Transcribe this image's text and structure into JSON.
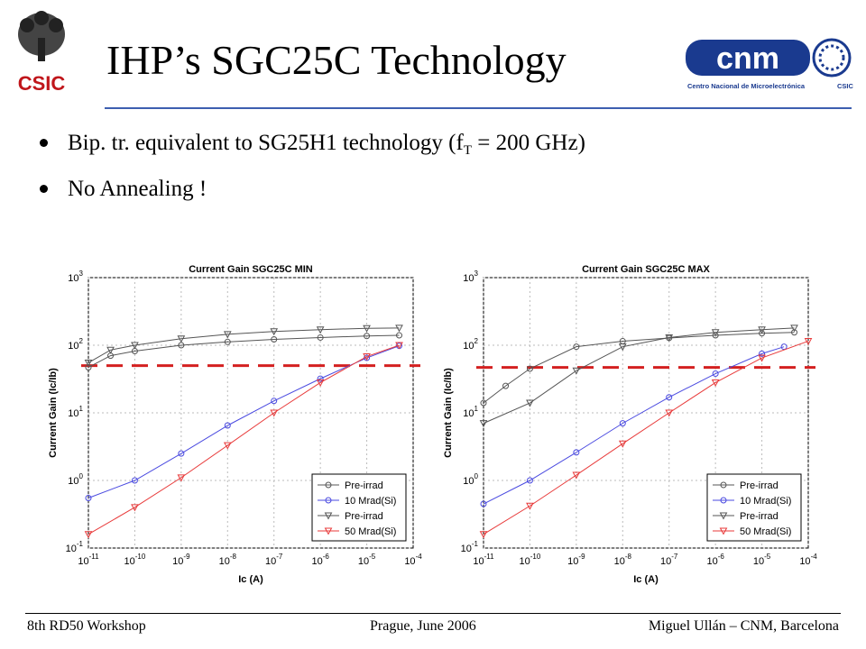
{
  "slide": {
    "title": "IHP’s SGC25C Technology",
    "bullets": [
      {
        "text": "Bip. tr. equivalent to SG25H1 technology (f",
        "sub": "T",
        "after": " = 200 GHz)"
      },
      {
        "text": "No Annealing !"
      }
    ],
    "logos": {
      "left_text": "CSIC",
      "right_name": "Centro Nacional de Microelectrónica",
      "right_sub": "CSIC"
    },
    "footer": {
      "left": "8th RD50 Workshop",
      "center": "Prague, June 2006",
      "right": "Miguel Ullán – CNM, Barcelona"
    },
    "colors": {
      "accent_line": "#3d5fb0",
      "threshold": "#d42020",
      "pre_irrad": "#555555",
      "mrad10": "#4a4ae0",
      "mrad50": "#e83a3a"
    }
  },
  "chart_data": [
    {
      "type": "line",
      "title": "Current Gain SGC25C MIN",
      "xlabel": "Ic (A)",
      "ylabel": "Current Gain (Ic/Ib)",
      "xscale": "log",
      "yscale": "log",
      "xlim": [
        1e-11,
        0.0001
      ],
      "ylim": [
        0.1,
        1000
      ],
      "xticks": [
        "10^-11",
        "10^-10",
        "10^-9",
        "10^-8",
        "10^-7",
        "10^-6",
        "10^-5",
        "10^-4"
      ],
      "yticks": [
        "10^-1",
        "10^0",
        "10^1",
        "10^2",
        "10^3"
      ],
      "grid": true,
      "legend_position": "bottom-right",
      "threshold": 50,
      "series": [
        {
          "name": "Pre-irrad",
          "marker": "circle",
          "color": "#555555",
          "x": [
            1e-11,
            3e-11,
            1e-10,
            1e-09,
            1e-08,
            1e-07,
            1e-06,
            1e-05,
            5e-05
          ],
          "y": [
            47,
            70,
            82,
            100,
            112,
            122,
            130,
            137,
            140
          ]
        },
        {
          "name": "10 Mrad(Si)",
          "marker": "circle",
          "color": "#4a4ae0",
          "x": [
            1e-11,
            1e-10,
            1e-09,
            1e-08,
            1e-07,
            1e-06,
            1e-05,
            5e-05
          ],
          "y": [
            0.55,
            1.0,
            2.5,
            6.5,
            15,
            32,
            65,
            98
          ]
        },
        {
          "name": "Pre-irrad",
          "marker": "triangle-down",
          "color": "#555555",
          "x": [
            1e-11,
            3e-11,
            1e-10,
            1e-09,
            1e-08,
            1e-07,
            1e-06,
            1e-05,
            5e-05
          ],
          "y": [
            55,
            85,
            100,
            125,
            145,
            160,
            170,
            178,
            180
          ]
        },
        {
          "name": "50 Mrad(Si)",
          "marker": "triangle-down",
          "color": "#e83a3a",
          "x": [
            1e-11,
            1e-10,
            1e-09,
            1e-08,
            1e-07,
            1e-06,
            1e-05,
            5e-05
          ],
          "y": [
            0.16,
            0.4,
            1.1,
            3.3,
            10,
            28,
            68,
            100
          ]
        }
      ]
    },
    {
      "type": "line",
      "title": "Current Gain SGC25C MAX",
      "xlabel": "Ic (A)",
      "ylabel": "Current Gain (Ic/Ib)",
      "xscale": "log",
      "yscale": "log",
      "xlim": [
        1e-11,
        0.0001
      ],
      "ylim": [
        0.1,
        1000
      ],
      "xticks": [
        "10^-11",
        "10^-10",
        "10^-9",
        "10^-8",
        "10^-7",
        "10^-6",
        "10^-5",
        "10^-4"
      ],
      "yticks": [
        "10^-1",
        "10^0",
        "10^1",
        "10^2",
        "10^3"
      ],
      "grid": true,
      "legend_position": "bottom-right",
      "threshold": 47,
      "series": [
        {
          "name": "Pre-irrad",
          "marker": "circle",
          "color": "#555555",
          "x": [
            1e-11,
            3e-11,
            1e-10,
            1e-09,
            1e-08,
            1e-07,
            1e-06,
            1e-05,
            5e-05
          ],
          "y": [
            14,
            25,
            45,
            95,
            115,
            128,
            140,
            150,
            155
          ]
        },
        {
          "name": "10 Mrad(Si)",
          "marker": "circle",
          "color": "#4a4ae0",
          "x": [
            1e-11,
            1e-10,
            1e-09,
            1e-08,
            1e-07,
            1e-06,
            1e-05,
            3e-05
          ],
          "y": [
            0.45,
            1.0,
            2.6,
            7,
            17,
            38,
            75,
            95
          ]
        },
        {
          "name": "Pre-irrad",
          "marker": "triangle-down",
          "color": "#555555",
          "x": [
            1e-11,
            1e-10,
            1e-09,
            1e-08,
            1e-07,
            1e-06,
            1e-05,
            5e-05
          ],
          "y": [
            7,
            14,
            42,
            95,
            130,
            155,
            170,
            180
          ]
        },
        {
          "name": "50 Mrad(Si)",
          "marker": "triangle-down",
          "color": "#e83a3a",
          "x": [
            1e-11,
            1e-10,
            1e-09,
            1e-08,
            1e-07,
            1e-06,
            1e-05,
            0.0001
          ],
          "y": [
            0.16,
            0.42,
            1.2,
            3.5,
            10,
            28,
            65,
            115
          ]
        }
      ]
    }
  ]
}
